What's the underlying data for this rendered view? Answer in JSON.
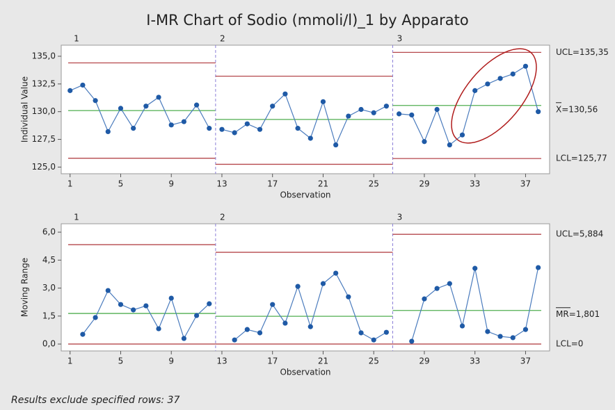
{
  "title": "I-MR Chart of Sodio (mmoli/l)_1 by Apparato",
  "footnote": "Results exclude specified rows: 37",
  "chart_data": [
    {
      "type": "line",
      "ylabel": "Individual Value",
      "xlabel": "Observation",
      "x": [
        1,
        2,
        3,
        4,
        5,
        6,
        7,
        8,
        9,
        10,
        11,
        12,
        13,
        14,
        15,
        16,
        17,
        18,
        19,
        20,
        21,
        22,
        23,
        24,
        25,
        26,
        27,
        28,
        29,
        30,
        31,
        32,
        33,
        34,
        35,
        36,
        37,
        38
      ],
      "values": [
        131.9,
        132.4,
        131.0,
        128.2,
        130.3,
        128.5,
        130.5,
        131.3,
        128.8,
        129.1,
        130.6,
        128.5,
        128.4,
        128.1,
        128.9,
        128.4,
        130.5,
        131.6,
        128.5,
        127.6,
        130.9,
        127.0,
        129.6,
        130.2,
        129.9,
        130.5,
        129.8,
        129.7,
        127.3,
        130.2,
        127.0,
        127.9,
        131.9,
        132.5,
        133.0,
        133.4,
        134.1,
        130.0
      ],
      "color": "#1f5aa6",
      "line_color": "#4a7bbd",
      "limit_color": "#b5474b",
      "center_color": "#4fae4f",
      "stages": [
        {
          "label": "1",
          "first": 1,
          "last": 12,
          "ucl": 134.4,
          "center": 130.1,
          "lcl": 125.8
        },
        {
          "label": "2",
          "first": 13,
          "last": 26,
          "ucl": 133.2,
          "center": 129.3,
          "lcl": 125.25
        },
        {
          "label": "3",
          "first": 27,
          "last": 38,
          "ucl": 135.35,
          "center": 130.56,
          "lcl": 125.77
        }
      ],
      "limit_labels": {
        "ucl": "UCL=135,35",
        "center": "X=130,56",
        "lcl": "LCL=125,77"
      },
      "xlim": [
        0.3,
        38.9
      ],
      "xticks": [
        1,
        5,
        9,
        13,
        17,
        21,
        25,
        29,
        33,
        37
      ],
      "ylim": [
        124.4,
        136.0
      ],
      "yticks": [
        {
          "value": 125,
          "label": "125,0"
        },
        {
          "value": 127.5,
          "label": "127,5"
        },
        {
          "value": 130,
          "label": "130,0"
        },
        {
          "value": 132.5,
          "label": "132,5"
        },
        {
          "value": 135,
          "label": "135,0"
        }
      ]
    },
    {
      "type": "line",
      "ylabel": "Moving Range",
      "xlabel": "Observation",
      "x": [
        1,
        2,
        3,
        4,
        5,
        6,
        7,
        8,
        9,
        10,
        11,
        12,
        13,
        14,
        15,
        16,
        17,
        18,
        19,
        20,
        21,
        22,
        23,
        24,
        25,
        26,
        27,
        28,
        29,
        30,
        31,
        32,
        33,
        34,
        35,
        36,
        37,
        38
      ],
      "values": [
        null,
        0.52,
        1.42,
        2.87,
        2.12,
        1.83,
        2.05,
        0.82,
        2.46,
        0.3,
        1.53,
        2.16,
        null,
        0.22,
        0.78,
        0.6,
        2.12,
        1.12,
        3.09,
        0.93,
        3.24,
        3.8,
        2.53,
        0.6,
        0.22,
        0.63,
        null,
        0.15,
        2.42,
        2.98,
        3.24,
        0.97,
        4.06,
        0.67,
        0.41,
        0.34,
        0.78,
        4.1
      ],
      "color": "#1f5aa6",
      "line_color": "#4a7bbd",
      "limit_color": "#b5474b",
      "center_color": "#4fae4f",
      "stages": [
        {
          "label": "1",
          "first": 1,
          "last": 12,
          "ucl": 5.33,
          "center": 1.64,
          "lcl": 0
        },
        {
          "label": "2",
          "first": 13,
          "last": 26,
          "ucl": 4.92,
          "center": 1.49,
          "lcl": 0
        },
        {
          "label": "3",
          "first": 27,
          "last": 38,
          "ucl": 5.884,
          "center": 1.801,
          "lcl": 0
        }
      ],
      "limit_labels": {
        "ucl": "UCL=5,884",
        "center": "MR=1,801",
        "lcl": "LCL=0"
      },
      "xlim": [
        0.3,
        38.9
      ],
      "xticks": [
        1,
        5,
        9,
        13,
        17,
        21,
        25,
        29,
        33,
        37
      ],
      "ylim": [
        -0.37,
        6.45
      ],
      "yticks": [
        {
          "value": 0,
          "label": "0,0"
        },
        {
          "value": 1.5,
          "label": "1,5"
        },
        {
          "value": 3,
          "label": "3,0"
        },
        {
          "value": 4.5,
          "label": "4,5"
        },
        {
          "value": 6,
          "label": "6,0"
        }
      ]
    }
  ]
}
